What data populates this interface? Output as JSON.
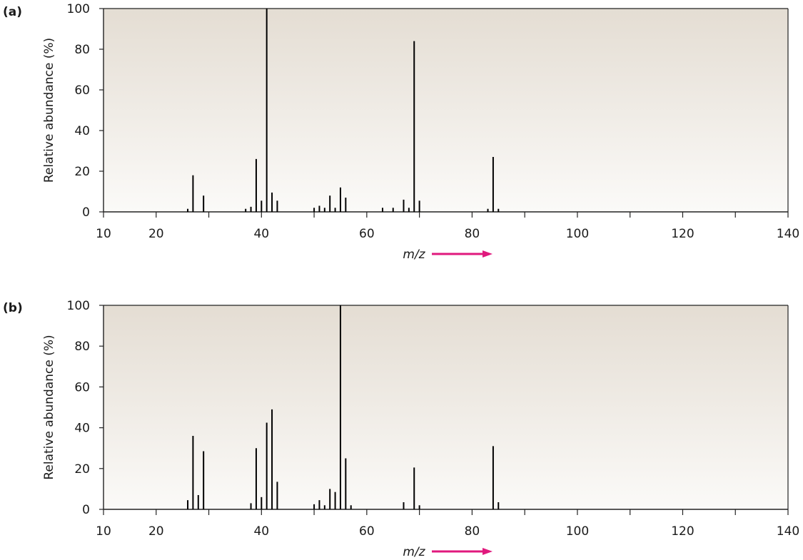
{
  "chart_data": [
    {
      "type": "bar",
      "panel_label": "(a)",
      "xlabel": "m/z",
      "ylabel": "Relative abundance (%)",
      "xlim": [
        10,
        140
      ],
      "ylim": [
        0,
        100
      ],
      "x_tick_labels": [
        "10",
        "20",
        "40",
        "60",
        "80",
        "100",
        "120",
        "140"
      ],
      "y_tick_labels": [
        "0",
        "20",
        "40",
        "60",
        "80",
        "100"
      ],
      "x_label_values": [
        10,
        20,
        40,
        60,
        80,
        100,
        120,
        140
      ],
      "y_label_values": [
        0,
        20,
        40,
        60,
        80,
        100
      ],
      "x_minor_ticks": [
        30,
        50,
        70,
        90,
        110,
        130
      ],
      "grid": false,
      "background_gradient": [
        "#e4ddd3",
        "#fbfaf8"
      ],
      "arrow_color": "#e0197d",
      "bar_color": "#000000",
      "x": [
        26,
        27,
        29,
        37,
        38,
        39,
        40,
        41,
        42,
        43,
        50,
        51,
        52,
        53,
        54,
        55,
        56,
        63,
        65,
        67,
        68,
        69,
        70,
        83,
        84,
        85
      ],
      "values": [
        1.5,
        18,
        8,
        1.5,
        2.5,
        26,
        5.5,
        100,
        9.5,
        5.5,
        2,
        3,
        2,
        8,
        2,
        12,
        7,
        2,
        2,
        6,
        2,
        84,
        5.5,
        1.5,
        27,
        1.5
      ]
    },
    {
      "type": "bar",
      "panel_label": "(b)",
      "xlabel": "m/z",
      "ylabel": "Relative abundance (%)",
      "xlim": [
        10,
        140
      ],
      "ylim": [
        0,
        100
      ],
      "x_tick_labels": [
        "10",
        "20",
        "40",
        "60",
        "80",
        "100",
        "120",
        "140"
      ],
      "y_tick_labels": [
        "0",
        "20",
        "40",
        "60",
        "80",
        "100"
      ],
      "x_label_values": [
        10,
        20,
        40,
        60,
        80,
        100,
        120,
        140
      ],
      "y_label_values": [
        0,
        20,
        40,
        60,
        80,
        100
      ],
      "x_minor_ticks": [
        30,
        50,
        70,
        90,
        110,
        130
      ],
      "grid": false,
      "background_gradient": [
        "#e4ddd3",
        "#fbfaf8"
      ],
      "arrow_color": "#e0197d",
      "bar_color": "#000000",
      "x": [
        26,
        27,
        28,
        29,
        38,
        39,
        40,
        41,
        42,
        43,
        50,
        51,
        52,
        53,
        54,
        55,
        56,
        57,
        67,
        69,
        70,
        84,
        85
      ],
      "values": [
        4.5,
        36,
        7,
        28.5,
        3,
        30,
        6,
        42.5,
        49,
        13.5,
        2.5,
        4.5,
        2,
        10,
        8.5,
        100,
        25,
        2,
        3.5,
        20.5,
        2,
        31,
        3.5
      ]
    }
  ]
}
